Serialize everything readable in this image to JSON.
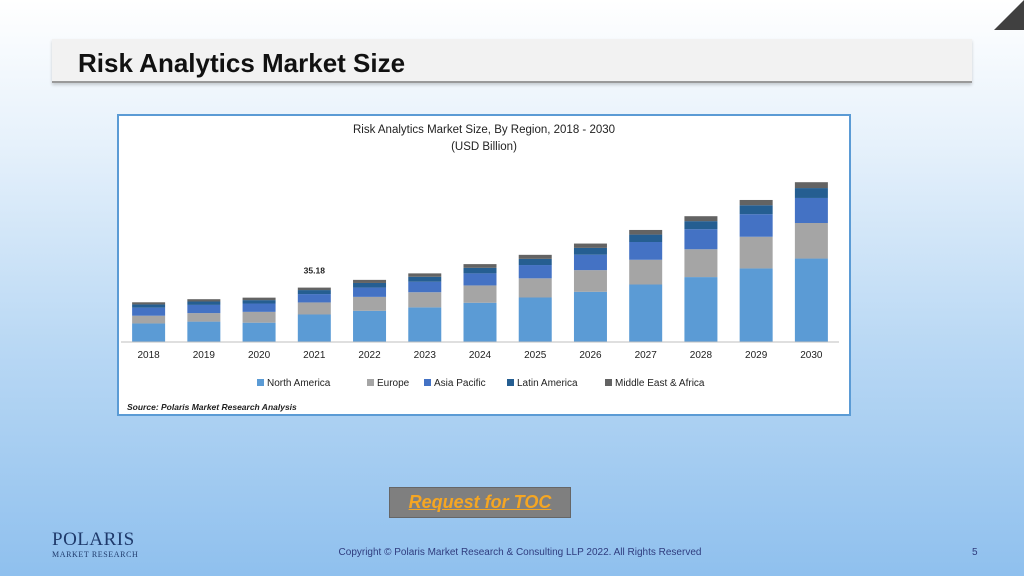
{
  "slide": {
    "title": "Risk Analytics Market Size",
    "toc_button": "Request for TOC",
    "logo_brand": "POLARIS",
    "logo_sub": "MARKET RESEARCH",
    "copyright": "Copyright © Polaris Market Research & Consulting LLP 2022. All Rights Reserved",
    "page_number": "5"
  },
  "chart_data": {
    "type": "bar",
    "stacked": true,
    "title": "Risk Analytics Market Size, By Region, 2018 - 2030",
    "subtitle": "(USD Billion)",
    "source": "Source: Polaris  Market Research Analysis",
    "annotation": {
      "category": "2021",
      "text": "35.18"
    },
    "ylim": [
      0,
      110
    ],
    "grid": false,
    "legend_position": "bottom",
    "categories": [
      "2018",
      "2019",
      "2020",
      "2021",
      "2022",
      "2023",
      "2024",
      "2025",
      "2026",
      "2027",
      "2028",
      "2029",
      "2030"
    ],
    "series": [
      {
        "name": "North America",
        "color": "#5b9bd5",
        "values": [
          12.0,
          13.2,
          12.5,
          17.8,
          20.2,
          22.4,
          25.4,
          28.8,
          32.5,
          37.2,
          42.0,
          47.6,
          54.0
        ]
      },
      {
        "name": "Europe",
        "color": "#a5a5a5",
        "values": [
          5.0,
          5.5,
          7.0,
          7.8,
          9.0,
          9.8,
          11.2,
          12.4,
          14.0,
          16.0,
          18.0,
          20.5,
          23.0
        ]
      },
      {
        "name": "Asia Pacific",
        "color": "#4472c4",
        "values": [
          5.2,
          5.3,
          5.4,
          5.4,
          6.0,
          6.8,
          7.8,
          8.6,
          10.0,
          11.5,
          13.0,
          14.6,
          16.2
        ]
      },
      {
        "name": "Latin America",
        "color": "#255e91",
        "values": [
          2.1,
          2.2,
          2.2,
          2.6,
          3.0,
          3.2,
          3.6,
          4.0,
          4.4,
          4.8,
          5.2,
          5.8,
          6.4
        ]
      },
      {
        "name": "Middle East & Africa",
        "color": "#636363",
        "values": [
          1.4,
          1.5,
          1.6,
          1.6,
          2.0,
          2.2,
          2.4,
          2.6,
          2.8,
          3.0,
          3.2,
          3.4,
          3.8
        ]
      }
    ]
  }
}
